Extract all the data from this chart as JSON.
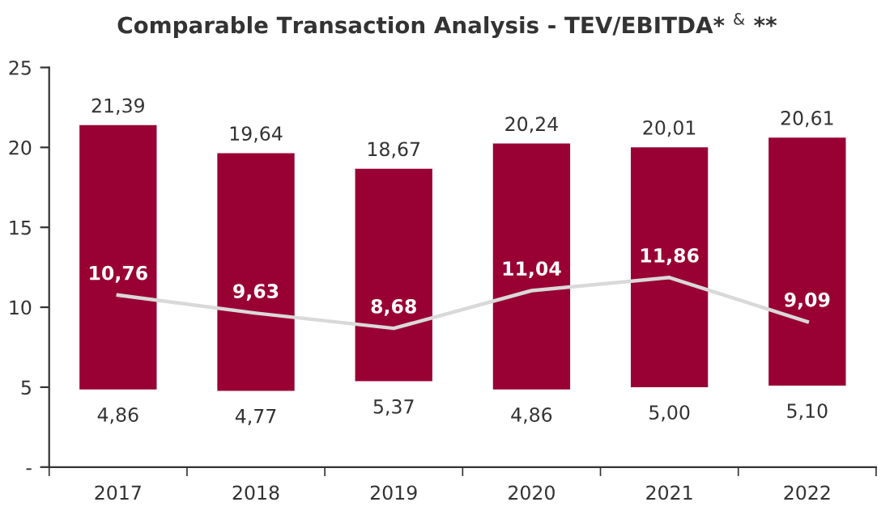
{
  "chart_data": {
    "type": "bar",
    "title": "Comparable Transaction Analysis - TEV/EBITDA* $^{&}$ **",
    "categories": [
      "2017",
      "2018",
      "2019",
      "2020",
      "2021",
      "2022"
    ],
    "series": [
      {
        "color": "#990033",
        "base": [
          4.86,
          4.77,
          5.37,
          4.86,
          5.0,
          5.1
        ],
        "values": [
          16.53,
          14.87,
          13.3,
          15.38,
          15.01,
          15.51
        ]
      },
      {
        "type": "line",
        "color": "#d9d9d9",
        "values": [
          10.76,
          9.63,
          8.68,
          11.04,
          11.86,
          9.09
        ],
        "value_labels": [
          "10,76",
          "9,63",
          "8,68",
          "11,04",
          "11,86",
          "9,09"
        ]
      }
    ],
    "annotations": [
      {
        "text": "21,39",
        "x": "2017",
        "y": 21.39
      },
      {
        "text": "19,64",
        "x": "2018",
        "y": 19.64
      },
      {
        "text": "18,67",
        "x": "2019",
        "y": 18.67
      },
      {
        "text": "20,24",
        "x": "2020",
        "y": 20.24
      },
      {
        "text": "20,01",
        "x": "2021",
        "y": 20.01
      },
      {
        "text": "20,61",
        "x": "2022",
        "y": 20.61
      },
      {
        "text": "4,86",
        "x": "2017",
        "y": 4.86
      },
      {
        "text": "4,77",
        "x": "2018",
        "y": 4.77
      },
      {
        "text": "5,37",
        "x": "2019",
        "y": 5.37
      },
      {
        "text": "4,86",
        "x": "2020",
        "y": 4.86
      },
      {
        "text": "5,00",
        "x": "2021",
        "y": 5.0
      },
      {
        "text": "5,10",
        "x": "2022",
        "y": 5.1
      }
    ],
    "ylim": [
      0,
      25
    ],
    "yticks": [
      {
        "value": 0,
        "label": "-"
      },
      5,
      10,
      15,
      20,
      25
    ],
    "grid": false,
    "legend": false
  }
}
